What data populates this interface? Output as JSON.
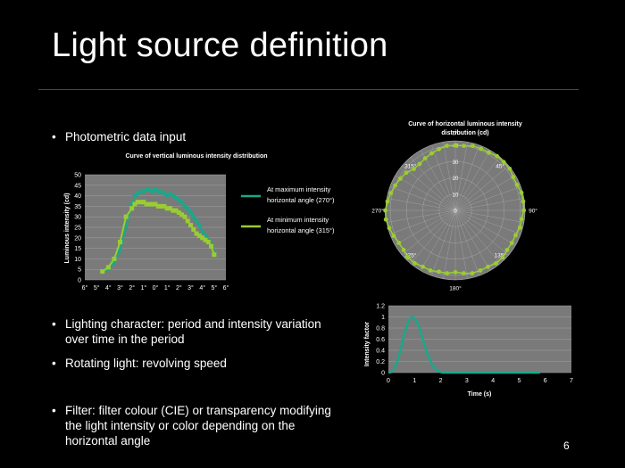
{
  "slide": {
    "title": "Light source definition",
    "page_number": "6",
    "bullets": [
      "Photometric data input",
      "Lighting character: period and intensity variation over time in the period",
      "Rotating light: revolving speed",
      "Filter: filter colour (CIE) or transparency modifying the light intensity or color depending on the horizontal angle"
    ]
  },
  "colors": {
    "teal": "#1aa88a",
    "lime": "#9acd32",
    "grid": "#8a8a8a",
    "plot_bg": "#7a7a7a",
    "rule": "#2c5a3c"
  },
  "chart_data": [
    {
      "type": "line",
      "title": "Curve of vertical luminous intensity distribution",
      "xlabel": "",
      "ylabel": "Luminous intensity (cd)",
      "x_tick_labels": [
        "6°",
        "5°",
        "4°",
        "3°",
        "2°",
        "1°",
        "0°",
        "1°",
        "2°",
        "3°",
        "4°",
        "5°",
        "6°"
      ],
      "y_ticks": [
        0,
        5,
        10,
        15,
        20,
        25,
        30,
        35,
        40,
        45,
        50
      ],
      "ylim": [
        0,
        50
      ],
      "xlim": [
        -6,
        6
      ],
      "grid": true,
      "legend_position": "right",
      "series": [
        {
          "name": "At maximum intensity horizontal angle (270°)",
          "x": [
            -4.5,
            -4,
            -3.5,
            -3,
            -2.5,
            -2,
            -1.75,
            -1.5,
            -1.25,
            -1,
            -0.75,
            -0.5,
            -0.25,
            0,
            0.25,
            0.5,
            0.75,
            1,
            1.25,
            1.5,
            1.75,
            2,
            2.25,
            2.5,
            2.75,
            3,
            3.25,
            3.5,
            3.75,
            4,
            4.25,
            4.5,
            4.75,
            5
          ],
          "y": [
            4,
            5,
            8,
            14,
            25,
            36,
            40,
            41,
            42,
            42,
            43,
            43,
            42,
            43,
            42,
            42,
            41,
            40,
            41,
            40,
            39,
            38,
            37,
            35,
            34,
            32,
            30,
            28,
            26,
            23,
            21,
            19,
            17,
            13
          ]
        },
        {
          "name": "At minimum intensity horizontal angle (315°)",
          "x": [
            -4.5,
            -4,
            -3.5,
            -3,
            -2.5,
            -2,
            -1.75,
            -1.5,
            -1.25,
            -1,
            -0.75,
            -0.5,
            -0.25,
            0,
            0.25,
            0.5,
            0.75,
            1,
            1.25,
            1.5,
            1.75,
            2,
            2.25,
            2.5,
            2.75,
            3,
            3.25,
            3.5,
            3.75,
            4,
            4.25,
            4.5,
            4.75,
            5
          ],
          "y": [
            4,
            6,
            10,
            18,
            30,
            34,
            36,
            37,
            37,
            37,
            36,
            36,
            36,
            36,
            35,
            35,
            35,
            34,
            34,
            33,
            33,
            32,
            31,
            30,
            28,
            26,
            24,
            22,
            21,
            20,
            19,
            18,
            16,
            12
          ]
        }
      ]
    },
    {
      "type": "scatter",
      "title": "Curve of horizontal luminous intensity distribution (cd)",
      "radial_ticks": [
        0,
        10,
        20,
        30,
        40
      ],
      "angle_labels": [
        "0°",
        "45°",
        "90°",
        "135°",
        "180°",
        "225°",
        "270°",
        "315°"
      ],
      "angles_deg": [
        0,
        7.5,
        15,
        22.5,
        30,
        37.5,
        45,
        52.5,
        60,
        67.5,
        75,
        82.5,
        90,
        97.5,
        105,
        112.5,
        120,
        127.5,
        135,
        142.5,
        150,
        157.5,
        165,
        172.5,
        180,
        187.5,
        195,
        202.5,
        210,
        217.5,
        225,
        232.5,
        240,
        247.5,
        255,
        262.5,
        270,
        277.5,
        285,
        292.5,
        300,
        307.5,
        315,
        322.5,
        330,
        337.5,
        345,
        352.5
      ],
      "values": [
        40,
        40,
        41,
        41,
        41,
        42,
        42,
        42,
        41,
        41,
        42,
        42,
        42,
        41,
        41,
        40,
        40,
        40,
        41,
        41,
        40,
        40,
        40,
        39,
        38,
        39,
        39,
        40,
        40,
        41,
        41,
        40,
        40,
        41,
        42,
        43,
        43,
        42,
        41,
        40,
        39,
        38,
        36,
        36,
        37,
        38,
        39,
        40
      ],
      "rmax": 40
    },
    {
      "type": "line",
      "title": "",
      "xlabel": "Time (s)",
      "ylabel": "Intensity factor",
      "x_ticks": [
        0,
        1,
        2,
        3,
        4,
        5,
        6,
        7
      ],
      "y_ticks": [
        0,
        0.2,
        0.4,
        0.6,
        0.8,
        1,
        1.2
      ],
      "xlim": [
        0,
        7
      ],
      "ylim": [
        0,
        1.2
      ],
      "grid": true,
      "series": [
        {
          "x": [
            0,
            0.1,
            0.2,
            0.3,
            0.4,
            0.5,
            0.6,
            0.7,
            0.8,
            0.9,
            1.0,
            1.1,
            1.2,
            1.3,
            1.4,
            1.5,
            1.6,
            1.7,
            1.8,
            1.9,
            2.0,
            2.1,
            2.2,
            2.5,
            3,
            3.5,
            4,
            4.5,
            5,
            5.5,
            5.8
          ],
          "y": [
            0,
            0.01,
            0.06,
            0.15,
            0.3,
            0.48,
            0.68,
            0.85,
            0.95,
            1.0,
            0.98,
            0.9,
            0.78,
            0.62,
            0.47,
            0.33,
            0.21,
            0.12,
            0.06,
            0.03,
            0.01,
            0,
            0,
            0,
            0,
            0,
            0,
            0,
            0,
            0,
            0
          ]
        }
      ]
    }
  ]
}
